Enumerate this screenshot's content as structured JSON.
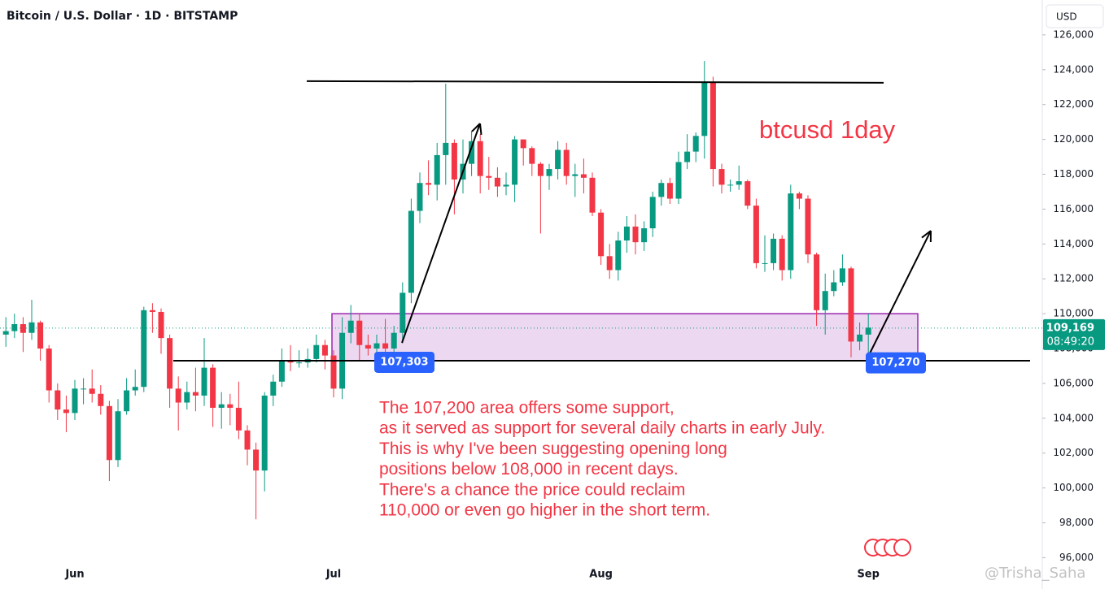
{
  "chart_data": {
    "type": "candlestick",
    "title": "Bitcoin / U.S. Dollar · 1D · BITSTAMP",
    "currency": "USD",
    "annotation_title": "btcusd 1day",
    "annotation_lines": [
      "The 107,200 area offers some support,",
      "as it served as support for several daily charts in early July.",
      "This is why I've been suggesting opening long",
      "positions below 108,000 in recent days.",
      "There's a chance the price could reclaim",
      "110,000 or even go higher in the short term."
    ],
    "watermark": "@Trisha_Saha",
    "up_color": "#089981",
    "down_color": "#f23645",
    "annotation_color": "#f23645",
    "categories": [
      null,
      null,
      null,
      null,
      null,
      null,
      null,
      null,
      "Jun",
      null,
      null,
      null,
      null,
      null,
      null,
      null,
      null,
      null,
      null,
      null,
      null,
      null,
      null,
      null,
      null,
      null,
      null,
      null,
      null,
      null,
      null,
      null,
      null,
      null,
      null,
      null,
      null,
      null,
      "Jul",
      null,
      null,
      null,
      null,
      null,
      null,
      null,
      null,
      null,
      null,
      null,
      null,
      null,
      null,
      null,
      null,
      null,
      null,
      null,
      null,
      null,
      null,
      null,
      null,
      null,
      null,
      null,
      null,
      null,
      null,
      "Aug",
      null,
      null,
      null,
      null,
      null,
      null,
      null,
      null,
      null,
      null,
      null,
      null,
      null,
      null,
      null,
      null,
      null,
      null,
      null,
      null,
      null,
      null,
      null,
      null,
      null,
      null,
      null,
      null,
      null,
      null,
      "Sep"
    ],
    "open": [
      108800,
      109000,
      109400,
      108900,
      109500,
      108000,
      105600,
      104500,
      104300,
      105700,
      105700,
      105400,
      104700,
      101600,
      104400,
      105600,
      105800,
      110200,
      110100,
      108600,
      105700,
      104900,
      105500,
      105300,
      106900,
      104600,
      104800,
      104600,
      103300,
      102200,
      101000,
      105300,
      106100,
      107300,
      107200,
      107200,
      107400,
      108200,
      107600,
      105700,
      108900,
      109600,
      108200,
      108000,
      108300,
      108000,
      108900,
      111200,
      115900,
      117500,
      117400,
      119100,
      119800,
      117700,
      118600,
      119900,
      117900,
      117800,
      117300,
      117400,
      120000,
      119500,
      118600,
      117900,
      118300,
      119400,
      117900,
      118000,
      117800,
      115800,
      113300,
      112500,
      114200,
      115000,
      114100,
      114900,
      116700,
      117500,
      116600,
      118700,
      119300,
      120200,
      123300,
      118300,
      117400,
      117400,
      117600,
      116200,
      112900,
      112900,
      114300,
      112500,
      116900,
      116600,
      113400,
      110200,
      111300,
      111800,
      112600,
      108400,
      108800
    ],
    "high": [
      109800,
      110000,
      109800,
      110800,
      109600,
      108200,
      106000,
      105300,
      106200,
      106300,
      106800,
      105900,
      105000,
      105100,
      106300,
      106800,
      110400,
      110600,
      110300,
      108800,
      106400,
      106100,
      106900,
      108600,
      107100,
      105500,
      105400,
      106100,
      103600,
      102600,
      105500,
      106500,
      108000,
      108200,
      107900,
      108000,
      108800,
      108500,
      107900,
      109800,
      110500,
      110000,
      108800,
      108800,
      109700,
      109300,
      111800,
      116600,
      118100,
      118800,
      119800,
      123200,
      120000,
      120000,
      120500,
      120300,
      119000,
      118400,
      118100,
      120200,
      120000,
      119600,
      118700,
      118600,
      119900,
      119800,
      118600,
      118900,
      118100,
      116000,
      114000,
      114700,
      115600,
      115700,
      115300,
      117000,
      117700,
      117800,
      119300,
      120300,
      120400,
      124500,
      123600,
      118600,
      117700,
      118500,
      117700,
      116600,
      114500,
      114600,
      114500,
      117400,
      117000,
      116800,
      113500,
      112300,
      112500,
      113400,
      112700,
      109500,
      110000
    ],
    "low": [
      108100,
      108600,
      107800,
      108500,
      107300,
      104900,
      103900,
      103200,
      103900,
      104800,
      104900,
      104200,
      100400,
      101200,
      104200,
      105300,
      105500,
      108900,
      107700,
      104600,
      103300,
      104500,
      104400,
      104700,
      103500,
      103400,
      103600,
      102800,
      101300,
      98200,
      99800,
      104700,
      105800,
      106700,
      106900,
      106900,
      107200,
      106800,
      105200,
      105100,
      108300,
      107300,
      107600,
      107400,
      107800,
      107500,
      108300,
      110600,
      115200,
      116800,
      116500,
      117400,
      115700,
      116900,
      117900,
      116900,
      117100,
      116700,
      116800,
      116400,
      118500,
      117900,
      114600,
      117100,
      117700,
      117400,
      116700,
      116900,
      115600,
      112800,
      112000,
      111900,
      113500,
      113400,
      113600,
      114400,
      116200,
      116300,
      116300,
      118300,
      118700,
      118900,
      117300,
      116900,
      117000,
      117100,
      116000,
      112600,
      112400,
      112500,
      111900,
      112000,
      116000,
      112900,
      109300,
      108800,
      111000,
      111600,
      107500,
      107900,
      107300
    ],
    "close": [
      109000,
      109400,
      108900,
      109500,
      108000,
      105600,
      104500,
      104300,
      105700,
      105700,
      105400,
      104700,
      101600,
      104400,
      105600,
      105800,
      110200,
      110100,
      108600,
      105700,
      104900,
      105500,
      105300,
      106900,
      104600,
      104800,
      104600,
      103300,
      102200,
      101000,
      105300,
      106100,
      107300,
      107200,
      107200,
      107400,
      108200,
      107600,
      105700,
      108900,
      109600,
      108200,
      108000,
      108300,
      108000,
      108900,
      111200,
      115900,
      117500,
      117400,
      119100,
      119800,
      117700,
      118600,
      119900,
      117900,
      117800,
      117300,
      117400,
      120000,
      119500,
      118600,
      117900,
      118300,
      119400,
      117900,
      118000,
      117800,
      115800,
      113300,
      112500,
      114200,
      115000,
      114100,
      114900,
      116700,
      117500,
      116600,
      118700,
      119300,
      120200,
      123300,
      118300,
      117400,
      117400,
      117600,
      116200,
      112900,
      112900,
      114300,
      112500,
      116900,
      116600,
      113400,
      110200,
      111300,
      111800,
      112600,
      108400,
      108800,
      109200
    ],
    "ylim": [
      95600,
      128000
    ],
    "yticks": [
      {
        "value": 96000,
        "label": "96,000"
      },
      {
        "value": 98000,
        "label": "98,000"
      },
      {
        "value": 100000,
        "label": "100,000"
      },
      {
        "value": 102000,
        "label": "102,000"
      },
      {
        "value": 104000,
        "label": "104,000"
      },
      {
        "value": 106000,
        "label": "106,000"
      },
      {
        "value": 108000,
        "label": "108,000"
      },
      {
        "value": 110000,
        "label": "110,000"
      },
      {
        "value": 112000,
        "label": "112,000"
      },
      {
        "value": 114000,
        "label": "114,000"
      },
      {
        "value": 116000,
        "label": "116,000"
      },
      {
        "value": 118000,
        "label": "118,000"
      },
      {
        "value": 120000,
        "label": "120,000"
      },
      {
        "value": 122000,
        "label": "122,000"
      },
      {
        "value": 124000,
        "label": "124,000"
      },
      {
        "value": 126000,
        "label": "126,000"
      }
    ],
    "resistance": 123300,
    "support": 107300,
    "zone": [
      107300,
      110000
    ],
    "zone_labels": [
      {
        "value": 107303,
        "label": "107,303"
      },
      {
        "value": 107270,
        "label": "107,270"
      }
    ],
    "last_price": {
      "value": 109169,
      "label": "109,169"
    },
    "countdown": "08:49:20"
  }
}
